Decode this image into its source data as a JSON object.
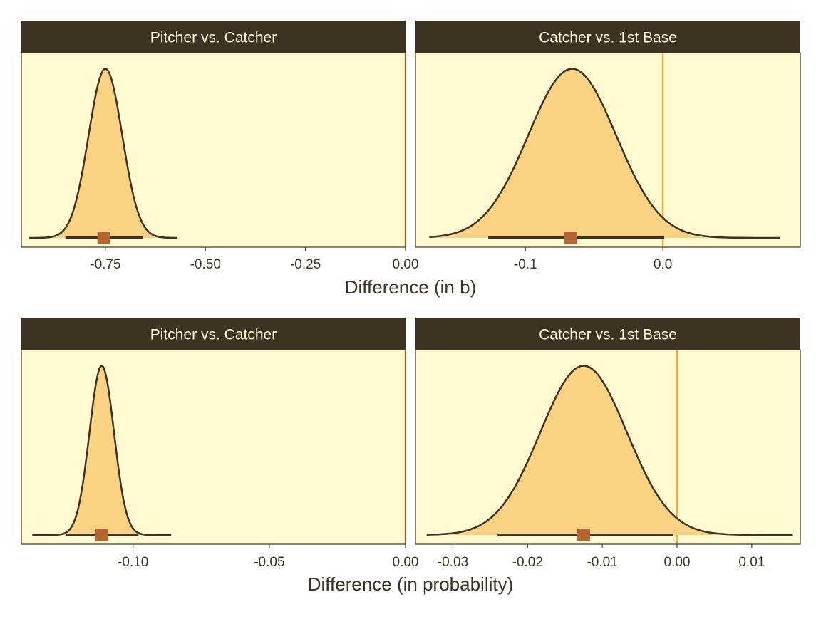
{
  "colors": {
    "strip_bg": "#3e3323",
    "strip_text": "#fffbd6",
    "panel_bg": "#fffad0",
    "panel_border": "#3e3323",
    "density_fill": "#f9d283",
    "density_line": "#3e3323",
    "ref_line": "#f3a94a",
    "interval": "#3e3323",
    "point": "#b4652f",
    "axis_text": "#3e3323"
  },
  "chart_data": [
    {
      "type": "area",
      "title": "Pitcher vs. Catcher",
      "xlabel": "Difference (in b)",
      "xlim": [
        -0.96,
        0.0
      ],
      "xticks": [
        -0.75,
        -0.5,
        -0.25,
        0.0
      ],
      "xtick_labels": [
        "-0.75",
        "-0.50",
        "-0.25",
        "0.00"
      ],
      "ref_line": 0.0,
      "density": {
        "mean": -0.75,
        "sd": 0.042,
        "min": -0.94,
        "max": -0.57
      },
      "interval": [
        -0.85,
        -0.657
      ],
      "point": -0.754
    },
    {
      "type": "area",
      "title": "Catcher vs. 1st Base",
      "xlabel": "Difference (in b)",
      "xlim": [
        -0.18,
        0.1
      ],
      "xticks": [
        -0.1,
        0.0
      ],
      "xtick_labels": [
        "-0.1",
        "0.0"
      ],
      "ref_line": 0.0,
      "density": {
        "mean": -0.066,
        "sd": 0.032,
        "min": -0.17,
        "max": 0.085
      },
      "interval": [
        -0.127,
        0.001
      ],
      "point": -0.067
    },
    {
      "type": "area",
      "title": "Pitcher vs. Catcher",
      "xlabel": "Difference (in probability)",
      "xlim": [
        -0.141,
        0.0
      ],
      "xticks": [
        -0.1,
        -0.05,
        0.0
      ],
      "xtick_labels": [
        "-0.10",
        "-0.05",
        "0.00"
      ],
      "ref_line": 0.0,
      "density": {
        "mean": -0.1115,
        "sd": 0.0045,
        "min": -0.137,
        "max": -0.086
      },
      "interval": [
        -0.1245,
        -0.098
      ],
      "point": -0.1115
    },
    {
      "type": "area",
      "title": "Catcher vs. 1st Base",
      "xlabel": "Difference (in probability)",
      "xlim": [
        -0.035,
        0.0165
      ],
      "xticks": [
        -0.03,
        -0.02,
        -0.01,
        0.0,
        0.01
      ],
      "xtick_labels": [
        "-0.03",
        "-0.02",
        "-0.01",
        "0.00",
        "0.01"
      ],
      "ref_line": 0.0,
      "density": {
        "mean": -0.0125,
        "sd": 0.0058,
        "min": -0.0335,
        "max": 0.0155
      },
      "interval": [
        -0.024,
        -0.0005
      ],
      "point": -0.0125
    }
  ]
}
